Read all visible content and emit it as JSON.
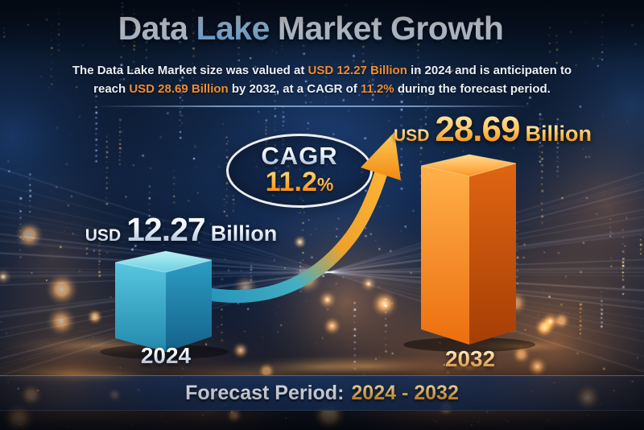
{
  "title": {
    "part1": "Data",
    "part2": "Lake",
    "part3": "Market Growth"
  },
  "subtitle": {
    "l1a": "The Data Lake Market size was valued at ",
    "l1b": "USD 12.27 Billion",
    "l1c": " in 2024 and is anticipaten to",
    "l2a": "reach ",
    "l2b": "USD 28.69 Billion",
    "l2c": " by 2032, at a CAGR of ",
    "l2d": "11.2%",
    "l2e": " during the forecast period."
  },
  "cagr": {
    "label": "CAGR",
    "value": "11.2",
    "percent": "%"
  },
  "bars": {
    "b2024": {
      "usd": "USD",
      "value": "12.27",
      "unit": "Billion",
      "year": "2024"
    },
    "b2032": {
      "usd": "USD",
      "value": "28.69",
      "unit": "Billion",
      "year": "2032"
    }
  },
  "banner": {
    "label": "Forecast Period:",
    "range": "2024 - 2032"
  },
  "colors": {
    "background_navy": "#0d1d36",
    "accent_cyan_bar": "#3fb6d8",
    "accent_orange_bar": "#f07a14",
    "highlight_orange_text": "#ef8c2e",
    "banner_range_gold": "#f5ab55",
    "arrow_teal": "#2593ba",
    "arrow_orange": "#ffb637"
  },
  "chart_data": {
    "type": "bar",
    "title": "Data Lake Market Growth",
    "categories": [
      "2024",
      "2032"
    ],
    "values": [
      12.27,
      28.69
    ],
    "unit": "USD Billion",
    "series_label": "Data Lake Market size",
    "cagr_percent": 11.2,
    "forecast_period": "2024 - 2032",
    "bar_colors": [
      "#3fb6d8",
      "#f07a14"
    ],
    "ylim": [
      0,
      30
    ],
    "grid": false,
    "legend": false,
    "annotations": [
      "CAGR 11.2%",
      "USD 12.27 Billion (2024)",
      "USD 28.69 Billion (2032)"
    ]
  }
}
